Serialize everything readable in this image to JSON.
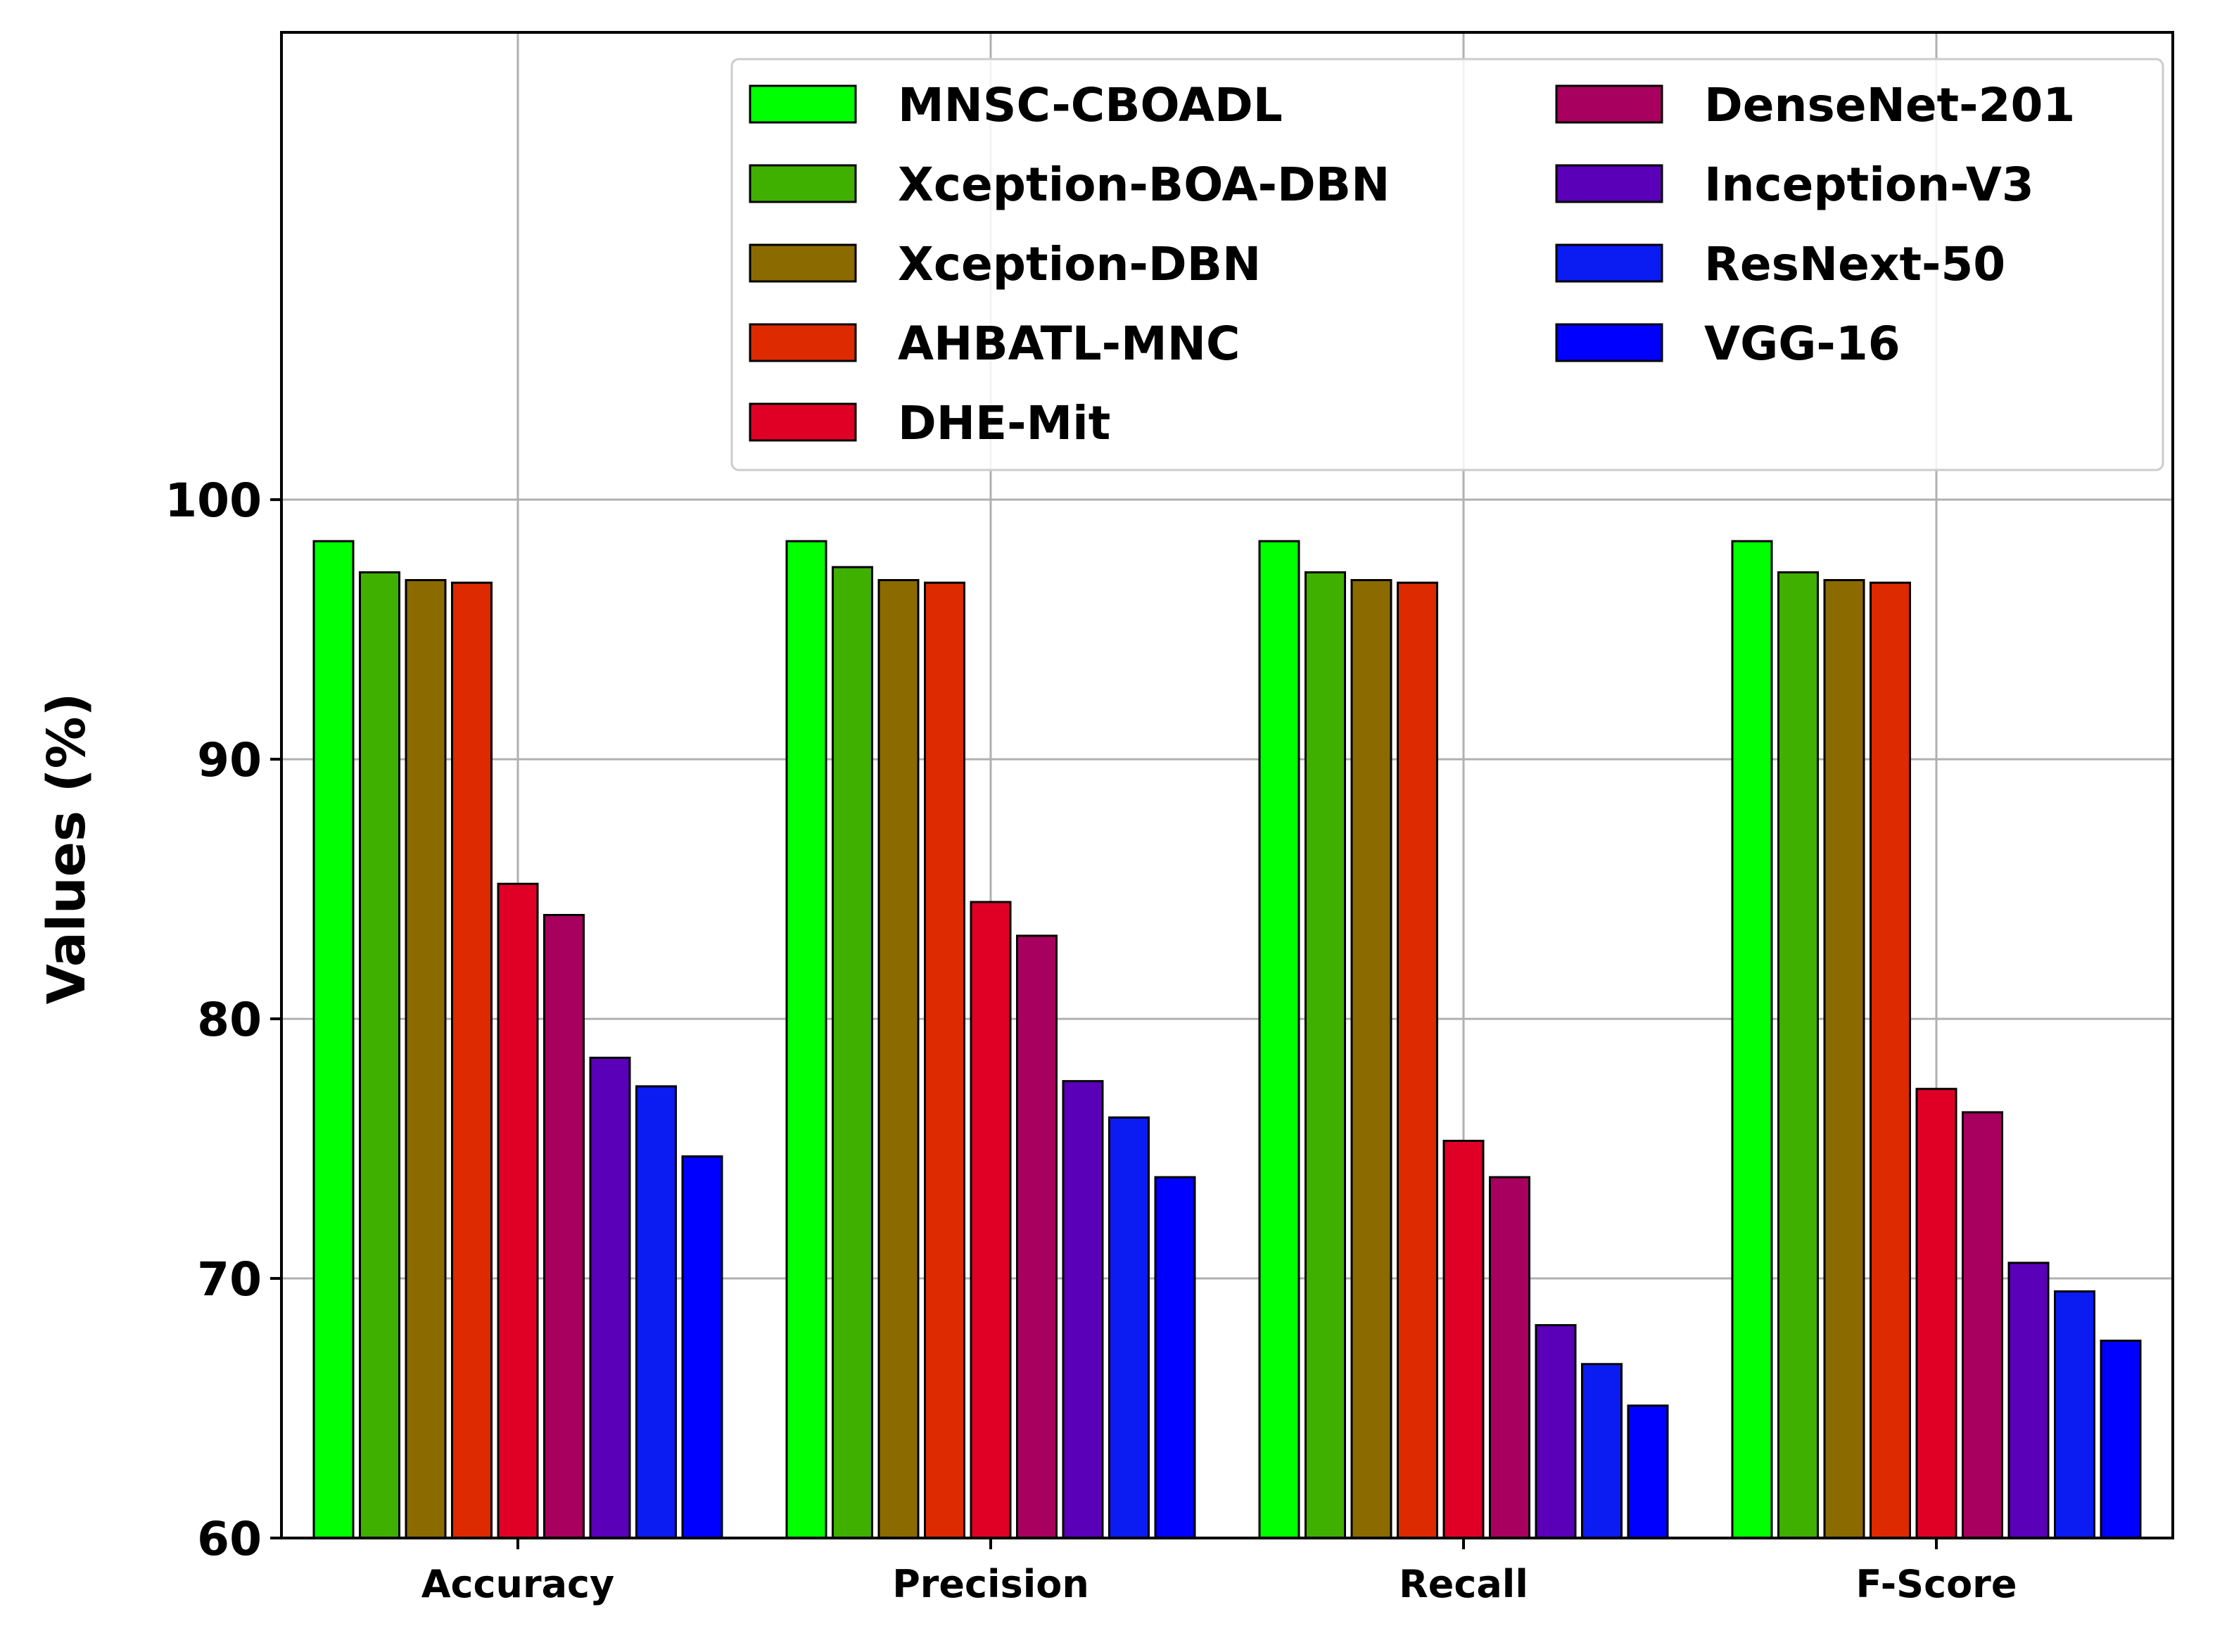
{
  "chart_data": {
    "type": "bar",
    "title": "",
    "xlabel": "",
    "ylabel": "Values (%)",
    "ylim": [
      60,
      118
    ],
    "yticks": [
      "60",
      "70",
      "80",
      "90",
      "100"
    ],
    "grid": true,
    "legend_position": "top-right",
    "categories": [
      "Accuracy",
      "Precision",
      "Recall",
      "F-Score"
    ],
    "series": [
      {
        "name": "MNSC-CBOADL",
        "color": "#00ff00",
        "values": [
          98.4,
          98.4,
          98.4,
          98.4
        ]
      },
      {
        "name": "Xception-BOA-DBN",
        "color": "#3fb000",
        "values": [
          97.2,
          97.4,
          97.2,
          97.2
        ]
      },
      {
        "name": "Xception-DBN",
        "color": "#8b6a00",
        "values": [
          96.9,
          96.9,
          96.9,
          96.9
        ]
      },
      {
        "name": "AHBATL-MNC",
        "color": "#dd2a00",
        "values": [
          96.8,
          96.8,
          96.8,
          96.8
        ]
      },
      {
        "name": "DHE-Mit",
        "color": "#e00026",
        "values": [
          85.2,
          84.5,
          75.3,
          77.3
        ]
      },
      {
        "name": "DenseNet-201",
        "color": "#a8005e",
        "values": [
          84.0,
          83.2,
          73.9,
          76.4
        ]
      },
      {
        "name": "Inception-V3",
        "color": "#5a00b8",
        "values": [
          78.5,
          77.6,
          68.2,
          70.6
        ]
      },
      {
        "name": "ResNext-50",
        "color": "#0a1cf2",
        "values": [
          77.4,
          76.2,
          66.7,
          69.5
        ]
      },
      {
        "name": "VGG-16",
        "color": "#0000ff",
        "values": [
          74.7,
          73.9,
          65.1,
          67.6
        ]
      }
    ]
  }
}
